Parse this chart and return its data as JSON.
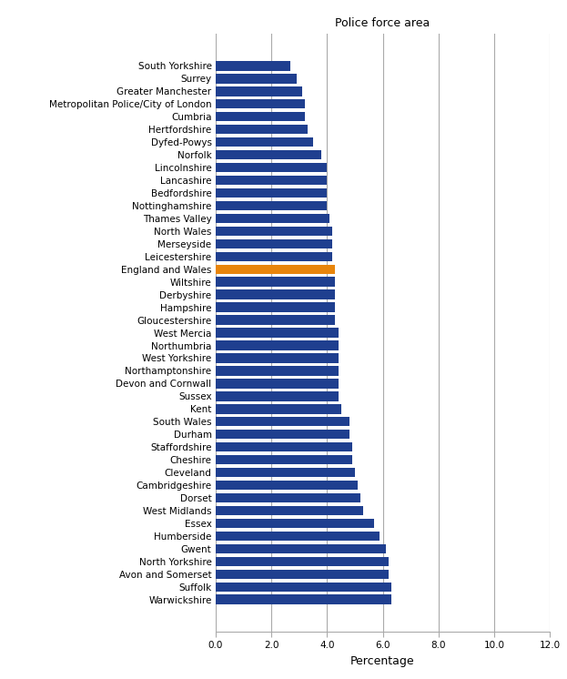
{
  "title": "Police force area",
  "xlabel": "Percentage",
  "categories": [
    "South Yorkshire",
    "Surrey",
    "Greater Manchester",
    "Metropolitan Police/City of London",
    "Cumbria",
    "Hertfordshire",
    "Dyfed-Powys",
    "Norfolk",
    "Lincolnshire",
    "Lancashire",
    "Bedfordshire",
    "Nottinghamshire",
    "Thames Valley",
    "North Wales",
    "Merseyside",
    "Leicestershire",
    "England and Wales",
    "Wiltshire",
    "Derbyshire",
    "Hampshire",
    "Gloucestershire",
    "West Mercia",
    "Northumbria",
    "West Yorkshire",
    "Northamptonshire",
    "Devon and Cornwall",
    "Sussex",
    "Kent",
    "South Wales",
    "Durham",
    "Staffordshire",
    "Cheshire",
    "Cleveland",
    "Cambridgeshire",
    "Dorset",
    "West Midlands",
    "Essex",
    "Humberside",
    "Gwent",
    "North Yorkshire",
    "Avon and Somerset",
    "Suffolk",
    "Warwickshire"
  ],
  "values": [
    2.7,
    2.9,
    3.1,
    3.2,
    3.2,
    3.3,
    3.5,
    3.8,
    4.0,
    4.0,
    4.0,
    4.0,
    4.1,
    4.2,
    4.2,
    4.2,
    4.3,
    4.3,
    4.3,
    4.3,
    4.3,
    4.4,
    4.4,
    4.4,
    4.4,
    4.4,
    4.4,
    4.5,
    4.8,
    4.8,
    4.9,
    4.9,
    5.0,
    5.1,
    5.2,
    5.3,
    5.7,
    5.9,
    6.1,
    6.2,
    6.2,
    6.3,
    6.3
  ],
  "highlight_index": 16,
  "bar_color": "#1F3F8F",
  "highlight_color": "#E8850C",
  "xlim": [
    0,
    12.0
  ],
  "xticks": [
    0.0,
    2.0,
    4.0,
    6.0,
    8.0,
    10.0,
    12.0
  ],
  "grid_color": "#aaaaaa",
  "background_color": "#ffffff",
  "title_fontsize": 9,
  "label_fontsize": 9,
  "tick_fontsize": 7.5
}
